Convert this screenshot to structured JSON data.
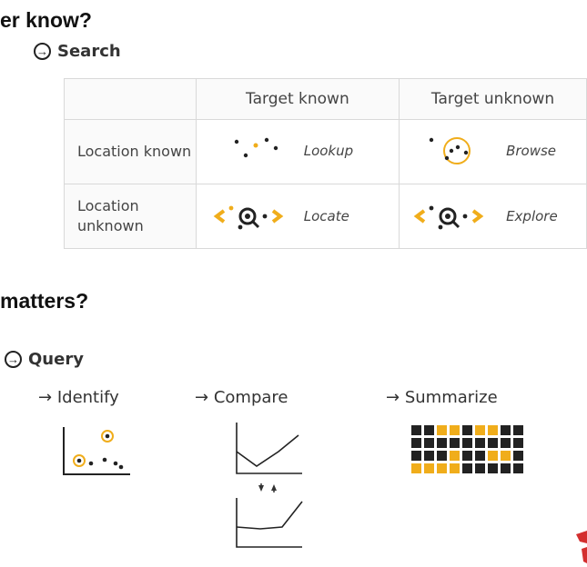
{
  "headings": {
    "top": "er know?",
    "bottom": "matters?"
  },
  "search": {
    "arrow_glyph": "→",
    "label": "Search",
    "table": {
      "col_headers": [
        "Target known",
        "Target unknown"
      ],
      "row_headers": [
        "Location known",
        "Location unknown"
      ],
      "cells": [
        [
          "Lookup",
          "Browse"
        ],
        [
          "Locate",
          "Explore"
        ]
      ]
    }
  },
  "query": {
    "arrow_glyph": "→",
    "label": "Query",
    "items": [
      {
        "arrow": "→",
        "label": "Identify"
      },
      {
        "arrow": "→",
        "label": "Compare"
      },
      {
        "arrow": "→",
        "label": "Summarize"
      }
    ]
  },
  "colors": {
    "accent": "#f0ad1b",
    "dark": "#222222",
    "border": "#d9d9d9"
  }
}
